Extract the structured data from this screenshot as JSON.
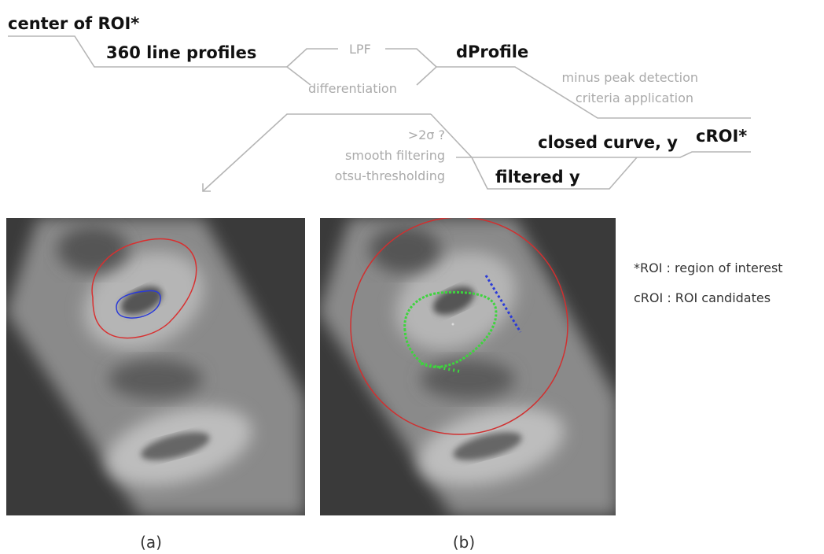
{
  "flow": {
    "center": "center of ROI*",
    "profiles": "360 line profiles",
    "lpf": "LPF",
    "differentiation": "differentiation",
    "dprofile": "dProfile",
    "criteria": [
      "minus peak detection",
      "criteria application"
    ],
    "croi": "cROI*",
    "closed_curve": "closed curve, y",
    "filters": [
      ">2σ ?",
      "smooth filtering",
      "otsu-thresholding"
    ],
    "filtered": "filtered y"
  },
  "legend": [
    "*ROI : region of interest",
    "cROI : ROI candidates"
  ],
  "panels": [
    {
      "label": "(a)"
    },
    {
      "label": "(b)"
    }
  ]
}
